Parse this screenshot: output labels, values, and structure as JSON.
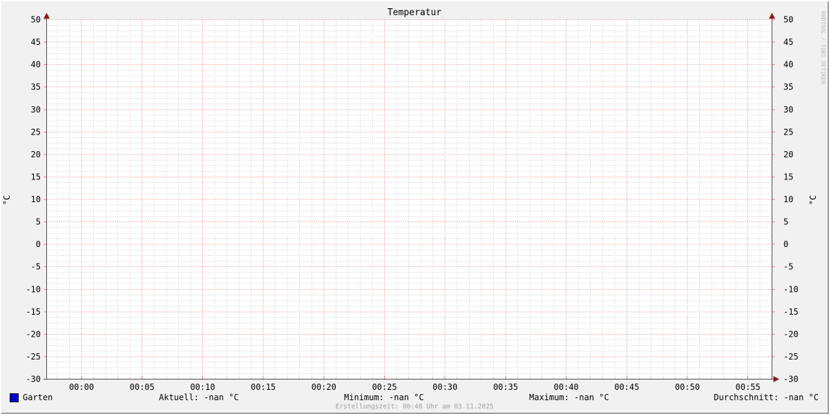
{
  "title": "Temperatur",
  "y_axis": {
    "left_label": "°C",
    "right_label": "°C"
  },
  "watermark": "RRDTOOL / TOBI OETIKER",
  "legend": {
    "series_label": "Garten",
    "series_color": "#0000cd",
    "aktuell": "Aktuell: -nan °C",
    "minimum": "Minimum: -nan °C",
    "maximum": "Maximum: -nan °C",
    "durchschnitt": "Durchschnitt: -nan °C"
  },
  "footer": {
    "erstellungszeit": "Erstellungszeit: 00:48 Uhr am 03.11.2025"
  },
  "colors": {
    "background": "#f1f1f1",
    "canvas": "#ffffff",
    "major_grid": "#e87a7a",
    "minor_grid": "#c9c9c9",
    "axis": "#4a4a4a",
    "arrow": "#8b1a1a",
    "text": "#000000",
    "muted_text": "#9f9f9f",
    "watermark_text": "#b6b6b6",
    "series_blue": "#0000cd"
  },
  "chart_data": {
    "type": "line",
    "title": "Temperatur",
    "ylabel": "°C",
    "ylabel_right": "°C",
    "ylim": [
      -30,
      50
    ],
    "y_tick_step": 5,
    "y_ticks": [
      50,
      45,
      40,
      35,
      30,
      25,
      20,
      15,
      10,
      5,
      0,
      -5,
      -10,
      -15,
      -20,
      -25,
      -30
    ],
    "x_tick_labels": [
      "00:00",
      "00:05",
      "00:10",
      "00:15",
      "00:20",
      "00:25",
      "00:30",
      "00:35",
      "00:40",
      "00:45",
      "00:50",
      "00:55"
    ],
    "x_minor_per_major": 5,
    "y_minor_per_major": 4,
    "grid": true,
    "legend_position": "bottom",
    "series": [
      {
        "name": "Garten",
        "color": "#0000cd",
        "values": [],
        "note": "no data drawn; all statistics are -nan"
      }
    ],
    "stats": {
      "aktuell": "-nan °C",
      "minimum": "-nan °C",
      "maximum": "-nan °C",
      "durchschnitt": "-nan °C"
    }
  }
}
